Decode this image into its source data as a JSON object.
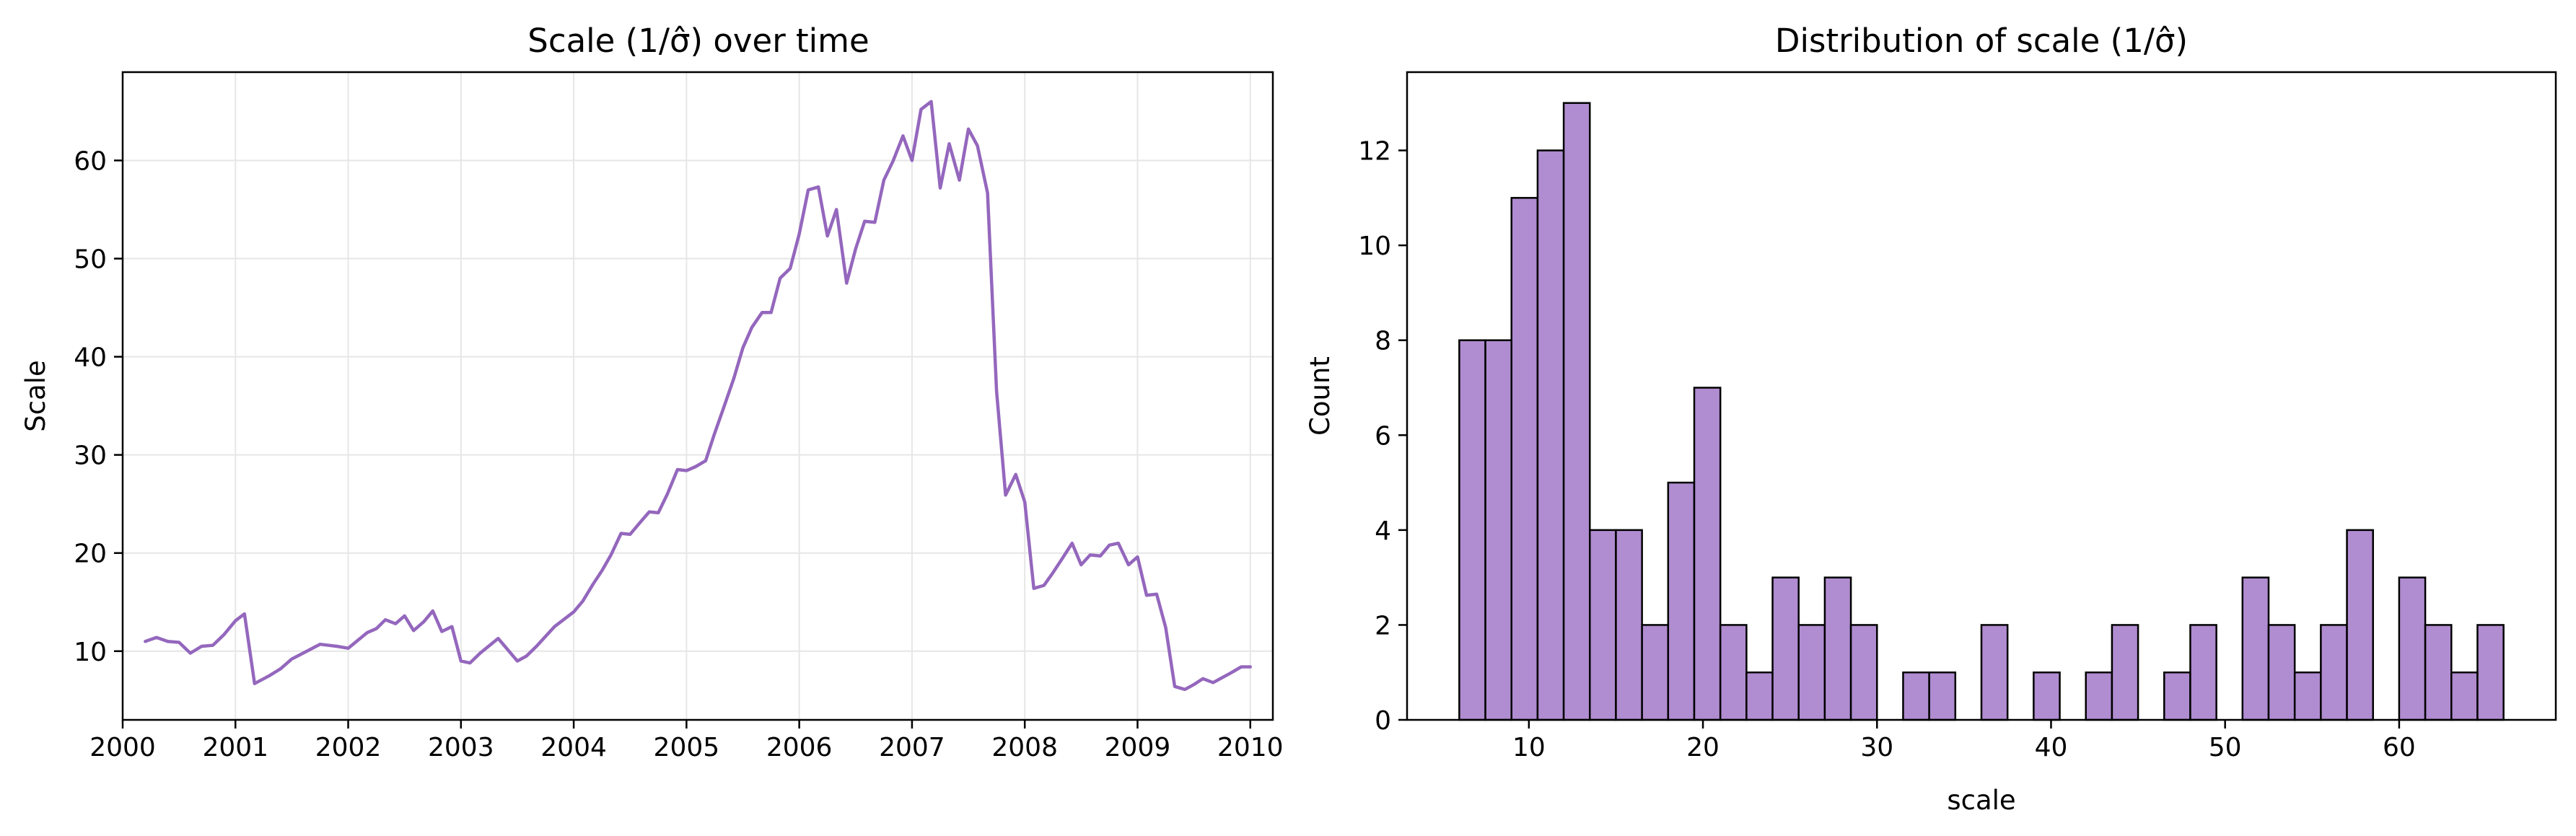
{
  "colors": {
    "line": "#9467bd",
    "bar_fill": "#b08cd0",
    "bar_edge": "#000000",
    "grid": "#e6e6e6"
  },
  "chart_data": [
    {
      "type": "line",
      "title": "Scale (1/σ̂) over time",
      "xlabel": "",
      "ylabel": "Scale",
      "grid": true,
      "xlim": [
        2000.0,
        2010.2
      ],
      "ylim": [
        3,
        69
      ],
      "x_ticks": [
        2000,
        2001,
        2002,
        2003,
        2004,
        2005,
        2006,
        2007,
        2008,
        2009,
        2010
      ],
      "y_ticks": [
        10,
        20,
        30,
        40,
        50,
        60
      ],
      "series": [
        {
          "x": [
            2000.2,
            2000.3,
            2000.4,
            2000.5,
            2000.6,
            2000.7,
            2000.8,
            2000.9,
            2001.0,
            2001.08,
            2001.17,
            2001.3,
            2001.4,
            2001.5,
            2001.6,
            2001.75,
            2001.9,
            2002.0,
            2002.17,
            2002.25,
            2002.33,
            2002.42,
            2002.5,
            2002.58,
            2002.67,
            2002.75,
            2002.83,
            2002.92,
            2003.0,
            2003.08,
            2003.17,
            2003.33,
            2003.5,
            2003.58,
            2003.67,
            2003.75,
            2003.83,
            2004.0,
            2004.08,
            2004.17,
            2004.25,
            2004.33,
            2004.42,
            2004.5,
            2004.58,
            2004.67,
            2004.75,
            2004.83,
            2004.92,
            2005.0,
            2005.08,
            2005.17,
            2005.25,
            2005.33,
            2005.42,
            2005.5,
            2005.58,
            2005.67,
            2005.75,
            2005.83,
            2005.92,
            2006.0,
            2006.08,
            2006.17,
            2006.25,
            2006.33,
            2006.42,
            2006.5,
            2006.58,
            2006.67,
            2006.75,
            2006.83,
            2006.92,
            2007.0,
            2007.08,
            2007.17,
            2007.25,
            2007.33,
            2007.42,
            2007.5,
            2007.58,
            2007.67,
            2007.75,
            2007.83,
            2007.92,
            2008.0,
            2008.08,
            2008.17,
            2008.25,
            2008.33,
            2008.42,
            2008.5,
            2008.58,
            2008.67,
            2008.75,
            2008.83,
            2008.92,
            2009.0,
            2009.08,
            2009.17,
            2009.25,
            2009.33,
            2009.42,
            2009.5,
            2009.58,
            2009.67,
            2009.75,
            2009.83,
            2009.92,
            2010.0
          ],
          "y": [
            11.0,
            11.4,
            11.0,
            10.9,
            9.8,
            10.5,
            10.6,
            11.7,
            13.1,
            13.8,
            6.7,
            7.5,
            8.2,
            9.2,
            9.8,
            10.7,
            10.5,
            10.3,
            11.9,
            12.3,
            13.2,
            12.8,
            13.6,
            12.1,
            13.0,
            14.1,
            12.0,
            12.5,
            9.0,
            8.8,
            9.8,
            11.3,
            9.0,
            9.5,
            10.5,
            11.5,
            12.5,
            14.0,
            15.1,
            16.8,
            18.2,
            19.8,
            22.0,
            21.9,
            23.0,
            24.2,
            24.1,
            26.0,
            28.5,
            28.4,
            28.8,
            29.4,
            32.2,
            34.8,
            37.8,
            40.9,
            43.0,
            44.5,
            44.5,
            48.0,
            49.0,
            52.5,
            57.0,
            57.3,
            52.3,
            55.0,
            47.5,
            51.0,
            53.8,
            53.7,
            58.0,
            59.9,
            62.5,
            60.0,
            65.2,
            66.0,
            57.2,
            61.7,
            58.0,
            63.2,
            61.5,
            56.7,
            36.5,
            25.9,
            28.0,
            25.2,
            16.4,
            16.7,
            18.0,
            19.4,
            21.0,
            18.8,
            19.8,
            19.7,
            20.8,
            21.0,
            18.8,
            19.6,
            15.7,
            15.8,
            12.4,
            6.4,
            6.1,
            6.6,
            7.2,
            6.8,
            7.3,
            7.8,
            8.4,
            8.4
          ]
        }
      ]
    },
    {
      "type": "bar",
      "title": "Distribution of scale (1/σ̂)",
      "xlabel": "scale",
      "ylabel": "Count",
      "grid": false,
      "xlim": [
        3.0,
        69.0
      ],
      "ylim": [
        0,
        13.65
      ],
      "x_ticks": [
        10,
        20,
        30,
        40,
        50,
        60
      ],
      "y_ticks": [
        0,
        2,
        4,
        6,
        8,
        10,
        12
      ],
      "bin_start": 6.0,
      "bin_width": 1.5,
      "counts": [
        8,
        8,
        11,
        12,
        13,
        4,
        4,
        2,
        5,
        7,
        2,
        1,
        3,
        2,
        3,
        2,
        0,
        1,
        1,
        0,
        2,
        0,
        1,
        0,
        1,
        2,
        0,
        1,
        2,
        0,
        3,
        2,
        1,
        2,
        4,
        0,
        3,
        2,
        1,
        2
      ]
    }
  ]
}
